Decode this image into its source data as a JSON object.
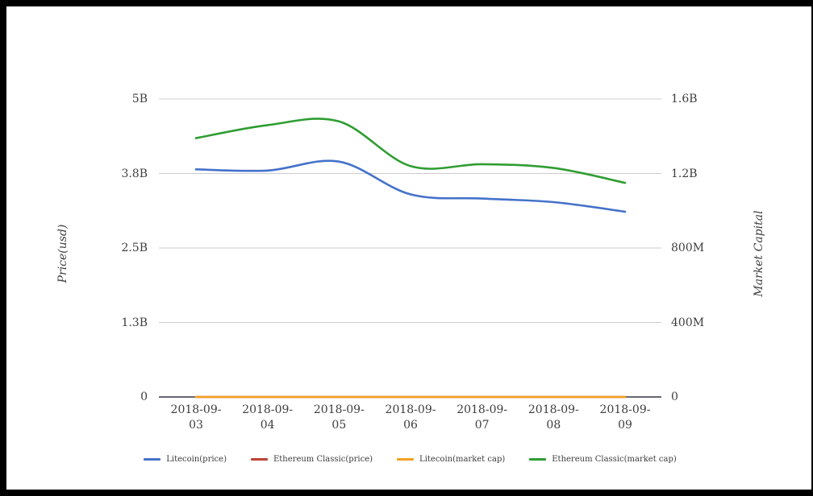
{
  "window": {
    "background": "#ffffff",
    "frame_border_color": "#000000"
  },
  "colors": {
    "grid_line": "#cccccc",
    "axis_baseline": "#33373f",
    "tick_text": "#3e3e3e",
    "legend_text": "#3b3b3b"
  },
  "chart_data": {
    "type": "line",
    "title": "",
    "grid": true,
    "legend_position": "bottom",
    "categories": [
      "2018-09-03",
      "2018-09-04",
      "2018-09-05",
      "2018-09-06",
      "2018-09-07",
      "2018-09-08",
      "2018-09-09"
    ],
    "left_axis": {
      "title": "Price(usd)",
      "tick_labels": [
        "0",
        "1.3B",
        "2.5B",
        "3.8B",
        "5B"
      ],
      "tick_values_billions": [
        0,
        1.25,
        2.5,
        3.75,
        5
      ],
      "range_billions": [
        0,
        5
      ]
    },
    "right_axis": {
      "title": "Market Capital",
      "tick_labels": [
        "0",
        "400M",
        "800M",
        "1.2B",
        "1.6B"
      ],
      "tick_values_billions": [
        0,
        0.4,
        0.8,
        1.2,
        1.6
      ],
      "range_billions": [
        0,
        1.6
      ]
    },
    "series": [
      {
        "name": "Litecoin(price)",
        "color": "#4472c9",
        "axis": "left",
        "values_billions": [
          3.82,
          3.8,
          3.95,
          3.4,
          3.33,
          3.27,
          3.11
        ]
      },
      {
        "name": "Ethereum Classic(price)",
        "color": "#bd4236",
        "axis": "left",
        "values_billions": [
          0,
          0,
          0,
          0,
          0,
          0,
          0
        ]
      },
      {
        "name": "Litecoin(market cap)",
        "color": "#f2a124",
        "axis": "right",
        "values_billions": [
          0,
          0,
          0,
          0,
          0,
          0,
          0
        ]
      },
      {
        "name": "Ethereum Classic(market cap)",
        "color": "#2f9d32",
        "axis": "right",
        "values_billions": [
          1.39,
          1.46,
          1.48,
          1.24,
          1.25,
          1.23,
          1.15
        ]
      }
    ]
  }
}
